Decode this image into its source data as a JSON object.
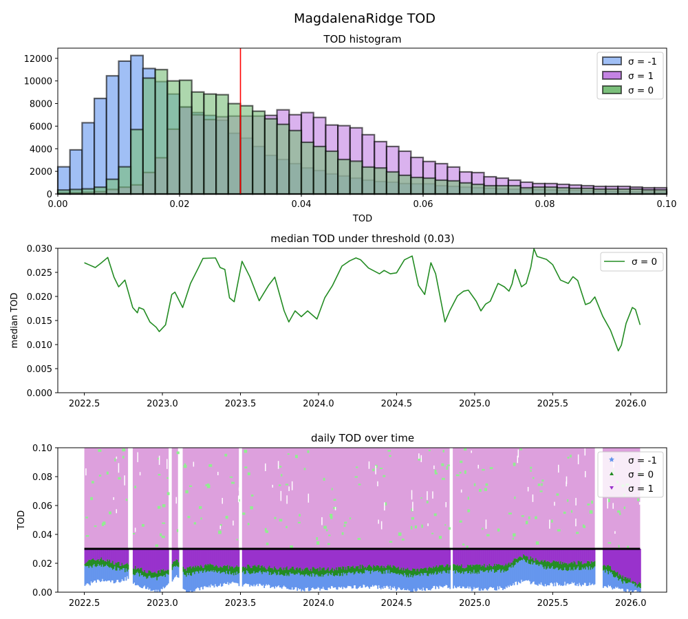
{
  "suptitle": "MagdalenaRidge TOD",
  "chart_data": [
    {
      "type": "bar",
      "subtype": "overlapping-histogram",
      "title": "TOD histogram",
      "xlabel": "TOD",
      "ylabel": "",
      "xlim": [
        0.0,
        0.1
      ],
      "ylim": [
        0,
        12900
      ],
      "xticks": [
        "0.00",
        "0.02",
        "0.04",
        "0.06",
        "0.08",
        "0.10"
      ],
      "yticks": [
        "0",
        "2000",
        "4000",
        "6000",
        "8000",
        "10000",
        "12000"
      ],
      "bin_width": 0.002,
      "bin_start": 0.0,
      "threshold_line": {
        "x": 0.03,
        "color": "#ff0000"
      },
      "legend_position": "top-right",
      "series": [
        {
          "name": "σ = -1",
          "color": "#6495ed",
          "values": [
            2400,
            3900,
            6300,
            8450,
            10450,
            11750,
            12250,
            11100,
            9940,
            8840,
            7700,
            7200,
            6950,
            6520,
            5370,
            4940,
            4200,
            3410,
            3050,
            2680,
            2300,
            2070,
            1770,
            1590,
            1400,
            1220,
            1100,
            1040,
            920,
            900,
            900,
            730,
            670,
            600,
            550,
            500,
            450,
            420,
            400,
            380,
            350,
            330,
            300,
            280,
            260,
            240,
            220,
            200,
            190,
            180
          ]
        },
        {
          "name": "σ = 1",
          "color": "#9932cc",
          "values": [
            100,
            120,
            150,
            200,
            400,
            600,
            800,
            1900,
            3200,
            5730,
            7680,
            7000,
            6580,
            6830,
            6890,
            6890,
            6890,
            6950,
            7440,
            7010,
            7200,
            6770,
            6100,
            6040,
            5850,
            5240,
            4630,
            4200,
            3780,
            3230,
            2870,
            2680,
            2380,
            1950,
            1890,
            1520,
            1400,
            1220,
            1040,
            920,
            920,
            850,
            790,
            730,
            670,
            670,
            670,
            610,
            550,
            550
          ]
        },
        {
          "name": "σ = 0",
          "color": "#2e8b2e",
          "values": [
            350,
            400,
            450,
            600,
            1300,
            2400,
            5700,
            10250,
            11000,
            10000,
            10060,
            9020,
            8840,
            8780,
            7990,
            7800,
            7320,
            6650,
            6160,
            5610,
            4570,
            4200,
            3780,
            3050,
            2900,
            2380,
            2300,
            1950,
            1650,
            1460,
            1400,
            1220,
            1160,
            980,
            850,
            730,
            730,
            730,
            550,
            610,
            610,
            550,
            500,
            500,
            430,
            430,
            430,
            430,
            370,
            370
          ]
        }
      ]
    },
    {
      "type": "line",
      "title": "median TOD under threshold (0.03)",
      "xlabel": "",
      "ylabel": "median TOD",
      "xlim": [
        2022.33,
        2026.23
      ],
      "ylim": [
        0.0,
        0.03
      ],
      "xticks": [
        "2022.5",
        "2023.0",
        "2023.5",
        "2024.0",
        "2024.5",
        "2025.0",
        "2025.5",
        "2026.0"
      ],
      "yticks": [
        "0.000",
        "0.005",
        "0.010",
        "0.015",
        "0.020",
        "0.025",
        "0.030"
      ],
      "legend_position": "top-right",
      "series": [
        {
          "name": "σ = 0",
          "color": "#228b22",
          "x": [
            2022.5,
            2022.57,
            2022.61,
            2022.65,
            2022.69,
            2022.72,
            2022.76,
            2022.81,
            2022.84,
            2022.85,
            2022.88,
            2022.92,
            2022.96,
            2022.98,
            2023.02,
            2023.06,
            2023.08,
            2023.13,
            2023.18,
            2023.23,
            2023.26,
            2023.34,
            2023.37,
            2023.4,
            2023.43,
            2023.46,
            2023.51,
            2023.56,
            2023.62,
            2023.68,
            2023.72,
            2023.78,
            2023.81,
            2023.85,
            2023.89,
            2023.93,
            2023.99,
            2024.04,
            2024.09,
            2024.15,
            2024.2,
            2024.24,
            2024.27,
            2024.32,
            2024.39,
            2024.42,
            2024.46,
            2024.5,
            2024.55,
            2024.6,
            2024.64,
            2024.68,
            2024.72,
            2024.75,
            2024.81,
            2024.84,
            2024.89,
            2024.93,
            2024.96,
            2025.01,
            2025.04,
            2025.07,
            2025.1,
            2025.15,
            2025.19,
            2025.22,
            2025.24,
            2025.26,
            2025.3,
            2025.33,
            2025.36,
            2025.38,
            2025.4,
            2025.46,
            2025.5,
            2025.55,
            2025.6,
            2025.63,
            2025.66,
            2025.71,
            2025.74,
            2025.77,
            2025.82,
            2025.87,
            2025.92,
            2025.94,
            2025.97,
            2026.01,
            2026.03,
            2026.06
          ],
          "y": [
            0.027,
            0.026,
            0.027,
            0.0281,
            0.024,
            0.022,
            0.0234,
            0.0177,
            0.0166,
            0.0177,
            0.0173,
            0.0147,
            0.0136,
            0.0127,
            0.0141,
            0.0204,
            0.0209,
            0.0177,
            0.0227,
            0.0259,
            0.0279,
            0.028,
            0.026,
            0.0256,
            0.0197,
            0.0189,
            0.0273,
            0.0241,
            0.0191,
            0.0223,
            0.024,
            0.017,
            0.0147,
            0.017,
            0.0158,
            0.017,
            0.0153,
            0.0197,
            0.0223,
            0.0263,
            0.0274,
            0.028,
            0.0276,
            0.0259,
            0.0247,
            0.0254,
            0.0247,
            0.0249,
            0.0276,
            0.0284,
            0.0223,
            0.0204,
            0.027,
            0.0247,
            0.0147,
            0.017,
            0.0201,
            0.0211,
            0.0213,
            0.019,
            0.017,
            0.0184,
            0.019,
            0.0227,
            0.022,
            0.0211,
            0.0226,
            0.0256,
            0.022,
            0.0227,
            0.0261,
            0.0299,
            0.0283,
            0.0277,
            0.0266,
            0.0234,
            0.0227,
            0.0241,
            0.0233,
            0.0183,
            0.0187,
            0.0199,
            0.0159,
            0.013,
            0.0087,
            0.0099,
            0.0144,
            0.0177,
            0.0173,
            0.0141
          ]
        }
      ]
    },
    {
      "type": "scatter",
      "title": "daily TOD over time",
      "xlabel": "",
      "ylabel": "TOD",
      "xlim": [
        2022.33,
        2026.23
      ],
      "ylim": [
        0.0,
        0.1
      ],
      "xticks": [
        "2022.5",
        "2023.0",
        "2023.5",
        "2024.0",
        "2024.5",
        "2025.0",
        "2025.5",
        "2026.0"
      ],
      "yticks": [
        "0.00",
        "0.02",
        "0.04",
        "0.06",
        "0.08",
        "0.10"
      ],
      "legend_position": "top-right",
      "threshold_line": {
        "y": 0.03,
        "color": "#000000"
      },
      "above_threshold_color": "#dda0dd",
      "observation_segments": [
        [
          2022.5,
          2022.78
        ],
        [
          2022.81,
          2023.04
        ],
        [
          2023.06,
          2023.1
        ],
        [
          2023.13,
          2023.49
        ],
        [
          2023.51,
          2024.84
        ],
        [
          2024.86,
          2025.77
        ],
        [
          2025.82,
          2026.06
        ]
      ],
      "series": [
        {
          "name": "σ = -1",
          "marker": "star",
          "color": "#6495ed",
          "lower_envelope_x": [
            2022.5,
            2022.6,
            2022.7,
            2022.78,
            2022.82,
            2022.95,
            2023.03,
            2023.08,
            2023.15,
            2023.3,
            2023.45,
            2023.55,
            2023.7,
            2023.9,
            2024.1,
            2024.3,
            2024.45,
            2024.6,
            2024.8,
            2025.0,
            2025.2,
            2025.3,
            2025.45,
            2025.6,
            2025.75,
            2025.85,
            2025.95,
            2026.05
          ],
          "lower_envelope_y": [
            0.005,
            0.008,
            0.007,
            0.01,
            0.006,
            0.0,
            0.004,
            0.012,
            0.0,
            0.004,
            0.006,
            0.005,
            0.004,
            0.002,
            0.003,
            0.004,
            0.003,
            0.001,
            0.004,
            0.002,
            0.003,
            0.008,
            0.005,
            0.006,
            0.005,
            0.004,
            0.001,
            0.0
          ]
        },
        {
          "name": "σ = 0",
          "marker": "triangle-up",
          "color": "#228b22",
          "lower_envelope_x": [
            2022.5,
            2022.6,
            2022.7,
            2022.78,
            2022.82,
            2022.95,
            2023.03,
            2023.08,
            2023.15,
            2023.3,
            2023.45,
            2023.55,
            2023.7,
            2023.9,
            2024.1,
            2024.3,
            2024.45,
            2024.6,
            2024.8,
            2025.0,
            2025.2,
            2025.3,
            2025.45,
            2025.6,
            2025.75,
            2025.85,
            2025.95,
            2026.05
          ],
          "lower_envelope_y": [
            0.017,
            0.019,
            0.016,
            0.015,
            0.013,
            0.009,
            0.012,
            0.019,
            0.012,
            0.015,
            0.013,
            0.014,
            0.013,
            0.012,
            0.012,
            0.014,
            0.014,
            0.011,
            0.014,
            0.014,
            0.015,
            0.022,
            0.017,
            0.016,
            0.017,
            0.014,
            0.007,
            0.004
          ]
        },
        {
          "name": "σ = 1",
          "marker": "triangle-down",
          "color": "#9932cc",
          "lower_envelope_x": [
            2022.5,
            2022.6,
            2022.7,
            2022.78,
            2022.82,
            2022.95,
            2023.03,
            2023.08,
            2023.15,
            2023.3,
            2023.45,
            2023.55,
            2023.7,
            2023.9,
            2024.1,
            2024.3,
            2024.45,
            2024.6,
            2024.8,
            2025.0,
            2025.2,
            2025.3,
            2025.45,
            2025.6,
            2025.75,
            2025.85,
            2025.95,
            2026.05
          ],
          "lower_envelope_y": [
            0.021,
            0.023,
            0.02,
            0.019,
            0.017,
            0.013,
            0.016,
            0.023,
            0.016,
            0.019,
            0.017,
            0.018,
            0.017,
            0.016,
            0.016,
            0.018,
            0.018,
            0.015,
            0.018,
            0.018,
            0.019,
            0.025,
            0.021,
            0.02,
            0.021,
            0.018,
            0.01,
            0.006
          ]
        }
      ],
      "speckle_color": "#90ee90"
    }
  ]
}
